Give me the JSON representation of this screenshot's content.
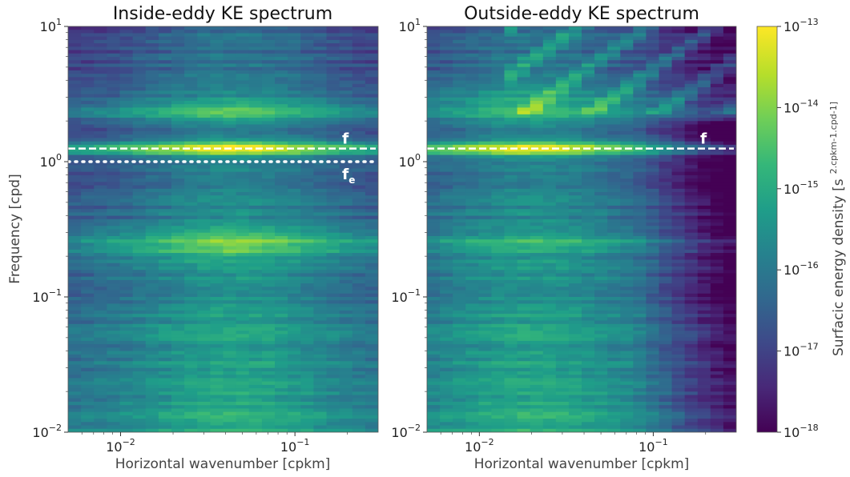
{
  "chart_data": [
    {
      "type": "heatmap",
      "title": "Inside-eddy KE spectrum",
      "xlabel": "Horizontal wavenumber [cpkm]",
      "ylabel": "Frequency [cpd]",
      "x_scale": "log",
      "y_scale": "log",
      "xlim": [
        0.005,
        0.3
      ],
      "ylim": [
        0.01,
        10
      ],
      "xticks": [
        {
          "value": 0.01,
          "base": "10",
          "exp": "−2"
        },
        {
          "value": 0.1,
          "base": "10",
          "exp": "−1"
        }
      ],
      "yticks": [
        {
          "value": 0.01,
          "base": "10",
          "exp": "−2"
        },
        {
          "value": 0.1,
          "base": "10",
          "exp": "−1"
        },
        {
          "value": 1,
          "base": "10",
          "exp": "0"
        },
        {
          "value": 10,
          "base": "10",
          "exp": "1"
        }
      ],
      "lines": [
        {
          "label": "f",
          "sub": "",
          "y": 1.25,
          "style": "dashed",
          "color": "#ffffff"
        },
        {
          "label": "f",
          "sub": "e",
          "y": 1.0,
          "style": "dotted",
          "color": "#ffffff"
        }
      ],
      "energy_bands": [
        {
          "y": 1.25,
          "width_decades": 0.05,
          "strength": 1.0
        },
        {
          "y": 2.4,
          "width_decades": 0.09,
          "strength": 0.55
        },
        {
          "y": 0.25,
          "width_decades": 0.1,
          "strength": 0.55
        }
      ],
      "x_peak": 0.045
    },
    {
      "type": "heatmap",
      "title": "Outside-eddy KE spectrum",
      "xlabel": "Horizontal wavenumber [cpkm]",
      "ylabel": "",
      "x_scale": "log",
      "y_scale": "log",
      "xlim": [
        0.005,
        0.3
      ],
      "ylim": [
        0.01,
        10
      ],
      "xticks": [
        {
          "value": 0.01,
          "base": "10",
          "exp": "−2"
        },
        {
          "value": 0.1,
          "base": "10",
          "exp": "−1"
        }
      ],
      "yticks": [
        {
          "value": 0.01,
          "base": "10",
          "exp": "−2"
        },
        {
          "value": 0.1,
          "base": "10",
          "exp": "−1"
        },
        {
          "value": 1,
          "base": "10",
          "exp": "0"
        },
        {
          "value": 10,
          "base": "10",
          "exp": "1"
        }
      ],
      "lines": [
        {
          "label": "f",
          "sub": "",
          "y": 1.25,
          "style": "dashed",
          "color": "#ffffff"
        }
      ],
      "energy_bands": [
        {
          "y": 1.25,
          "width_decades": 0.05,
          "strength": 0.95
        },
        {
          "y": 2.5,
          "width_decades": 0.12,
          "strength": 0.45
        },
        {
          "y": 0.25,
          "width_decades": 0.06,
          "strength": 0.35
        }
      ],
      "x_peak": 0.02
    }
  ],
  "colorbar": {
    "label": "Surfacic energy density [s",
    "label_units": "2.cpkm-1.cpd-1]",
    "scale": "log",
    "range": [
      1e-18,
      1e-13
    ],
    "colormap": "viridis",
    "ticks": [
      {
        "base": "10",
        "exp": "−13"
      },
      {
        "base": "10",
        "exp": "−14"
      },
      {
        "base": "10",
        "exp": "−15"
      },
      {
        "base": "10",
        "exp": "−16"
      },
      {
        "base": "10",
        "exp": "−17"
      },
      {
        "base": "10",
        "exp": "−18"
      }
    ]
  },
  "colors": {
    "viridis_stops": [
      "#440154",
      "#482878",
      "#3e4989",
      "#31688e",
      "#26828e",
      "#1f9e89",
      "#35b779",
      "#6ece58",
      "#b5de2b",
      "#fde725"
    ]
  }
}
